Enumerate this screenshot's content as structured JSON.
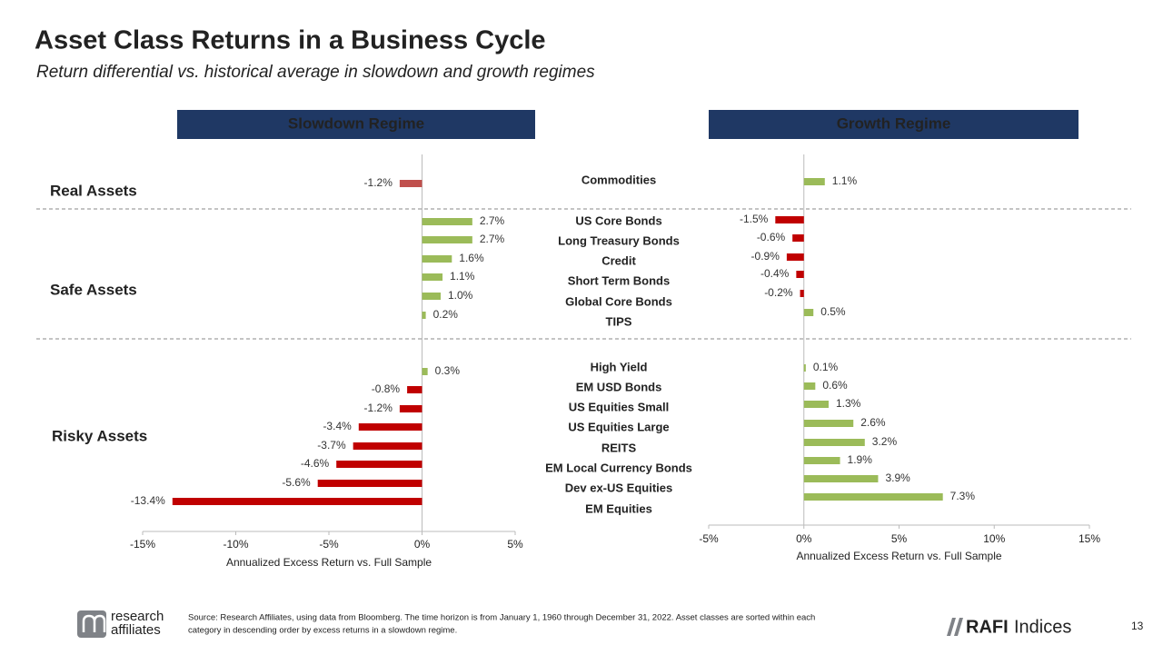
{
  "header": {
    "title": "Asset Class Returns in a Business Cycle",
    "subtitle": "Return differential vs. historical average in slowdown and growth regimes"
  },
  "groups": [
    "Real Assets",
    "Safe Assets",
    "Risky Assets"
  ],
  "chart_data": [
    {
      "type": "bar",
      "orientation": "horizontal",
      "title": "Slowdown Regime",
      "x_label": "Annualized Excess Return vs. Full Sample",
      "categories": [
        "Commodities",
        "US Core Bonds",
        "Long Treasury Bonds",
        "Credit",
        "Short Term Bonds",
        "Global Core Bonds",
        "TIPS",
        "High Yield",
        "EM USD Bonds",
        "US Equities Small",
        "US Equities Large",
        "REITS",
        "EM Local Currency Bonds",
        "Dev ex-US Equities",
        "EM Equities"
      ],
      "values": [
        -1.2,
        2.7,
        2.7,
        1.6,
        1.1,
        1.0,
        0.2,
        0.3,
        -0.8,
        -1.2,
        -3.4,
        -3.7,
        -4.6,
        -5.6,
        -13.4
      ],
      "value_labels": [
        "-1.2%",
        "2.7%",
        "2.7%",
        "1.6%",
        "1.1%",
        "1.0%",
        "0.2%",
        "0.3%",
        "-0.8%",
        "-1.2%",
        "-3.4%",
        "-3.7%",
        "-4.6%",
        "-5.6%",
        "-13.4%"
      ],
      "colors": [
        "#c0504d",
        "#9bbb59",
        "#9bbb59",
        "#9bbb59",
        "#9bbb59",
        "#9bbb59",
        "#9bbb59",
        "#9bbb59",
        "#c00000",
        "#c00000",
        "#c00000",
        "#c00000",
        "#c00000",
        "#c00000",
        "#c00000"
      ],
      "xlim": [
        -15,
        5
      ],
      "xticks": [
        {
          "value": -15,
          "label": "-15%"
        },
        {
          "value": -10,
          "label": "-10%"
        },
        {
          "value": -5,
          "label": "-5%"
        },
        {
          "value": 0,
          "label": "0%"
        },
        {
          "value": 5,
          "label": "5%"
        }
      ]
    },
    {
      "type": "bar",
      "orientation": "horizontal",
      "title": "Growth Regime",
      "x_label": "Annualized Excess Return vs. Full Sample",
      "values": [
        1.1,
        -1.5,
        -0.6,
        -0.9,
        -0.4,
        -0.2,
        0.5,
        0.1,
        0.6,
        1.3,
        2.6,
        3.2,
        1.9,
        3.9,
        7.3
      ],
      "value_labels": [
        "1.1%",
        "-1.5%",
        "-0.6%",
        "-0.9%",
        "-0.4%",
        "-0.2%",
        "0.5%",
        "0.1%",
        "0.6%",
        "1.3%",
        "2.6%",
        "3.2%",
        "1.9%",
        "3.9%",
        "7.3%"
      ],
      "colors": [
        "#9bbb59",
        "#c00000",
        "#c00000",
        "#c00000",
        "#c00000",
        "#c00000",
        "#9bbb59",
        "#9bbb59",
        "#9bbb59",
        "#9bbb59",
        "#9bbb59",
        "#9bbb59",
        "#9bbb59",
        "#9bbb59",
        "#9bbb59"
      ],
      "xlim": [
        -5,
        15
      ],
      "xticks": [
        {
          "value": -5,
          "label": "-5%"
        },
        {
          "value": 0,
          "label": "0%"
        },
        {
          "value": 5,
          "label": "5%"
        },
        {
          "value": 10,
          "label": "10%"
        },
        {
          "value": 15,
          "label": "15%"
        }
      ]
    }
  ],
  "footer": {
    "source": [
      "Source: Research Affiliates, using data from Bloomberg. The time horizon is from January 1, 1960 through December 31, 2022. Asset classes are sorted within each",
      "category in descending order by excess returns in a slowdown regime."
    ],
    "logo_left": [
      "research",
      "affiliates"
    ],
    "logo_right": [
      "RAFI",
      "Indices"
    ],
    "page": "13"
  }
}
